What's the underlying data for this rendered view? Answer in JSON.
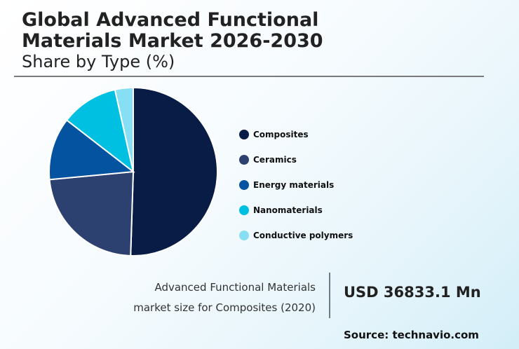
{
  "header": {
    "title_line1": "Global Advanced Functional",
    "title_line2": "Materials Market 2026-2030",
    "subtitle": "Share by Type (%)"
  },
  "legend": [
    {
      "label": "Composites",
      "color": "#081c45"
    },
    {
      "label": "Ceramics",
      "color": "#2c4170"
    },
    {
      "label": "Energy materials",
      "color": "#0453a0"
    },
    {
      "label": "Nanomaterials",
      "color": "#00c0e2"
    },
    {
      "label": "Conductive polymers",
      "color": "#87dff3"
    }
  ],
  "footer": {
    "desc_line1": "Advanced Functional Materials",
    "desc_line2": "market size for Composites (2020)",
    "value": "USD 36833.1 Mn",
    "source": "Source: technavio.com"
  },
  "chart_data": {
    "type": "pie",
    "title": "Global Advanced Functional Materials Market 2026-2030",
    "subtitle": "Share by Type (%)",
    "categories": [
      "Composites",
      "Ceramics",
      "Energy materials",
      "Nanomaterials",
      "Conductive polymers"
    ],
    "values": [
      50.5,
      23.0,
      12.0,
      11.0,
      3.5
    ],
    "colors": [
      "#081c45",
      "#2c4170",
      "#0453a0",
      "#00c0e2",
      "#87dff3"
    ],
    "start_angle_deg": 0,
    "direction": "clockwise",
    "legend_position": "right",
    "annotation": "Advanced Functional Materials market size for Composites (2020): USD 36833.1 Mn",
    "source": "technavio.com"
  }
}
